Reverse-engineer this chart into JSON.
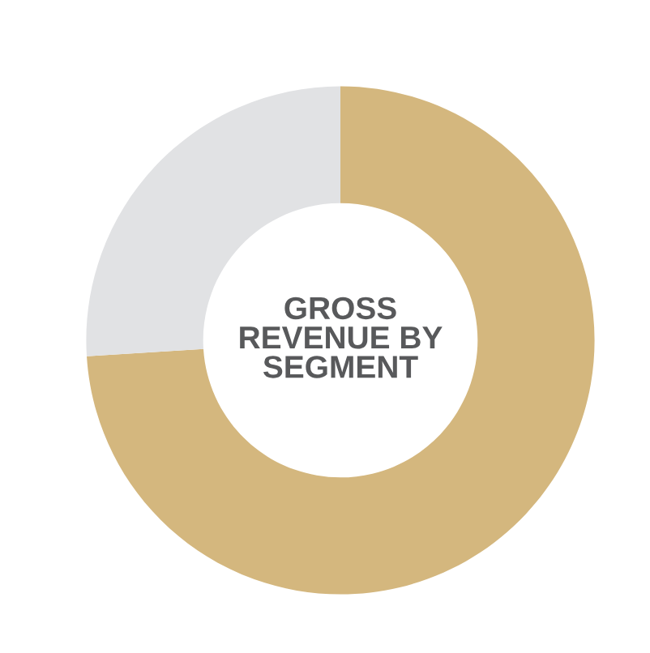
{
  "chart_data": {
    "type": "donut",
    "title": "GROSS\nREVENUE BY\nSEGMENT",
    "categories": [
      null,
      null
    ],
    "values": [
      74,
      26
    ],
    "colors": [
      "#d4b77e",
      "#e1e2e4"
    ]
  }
}
